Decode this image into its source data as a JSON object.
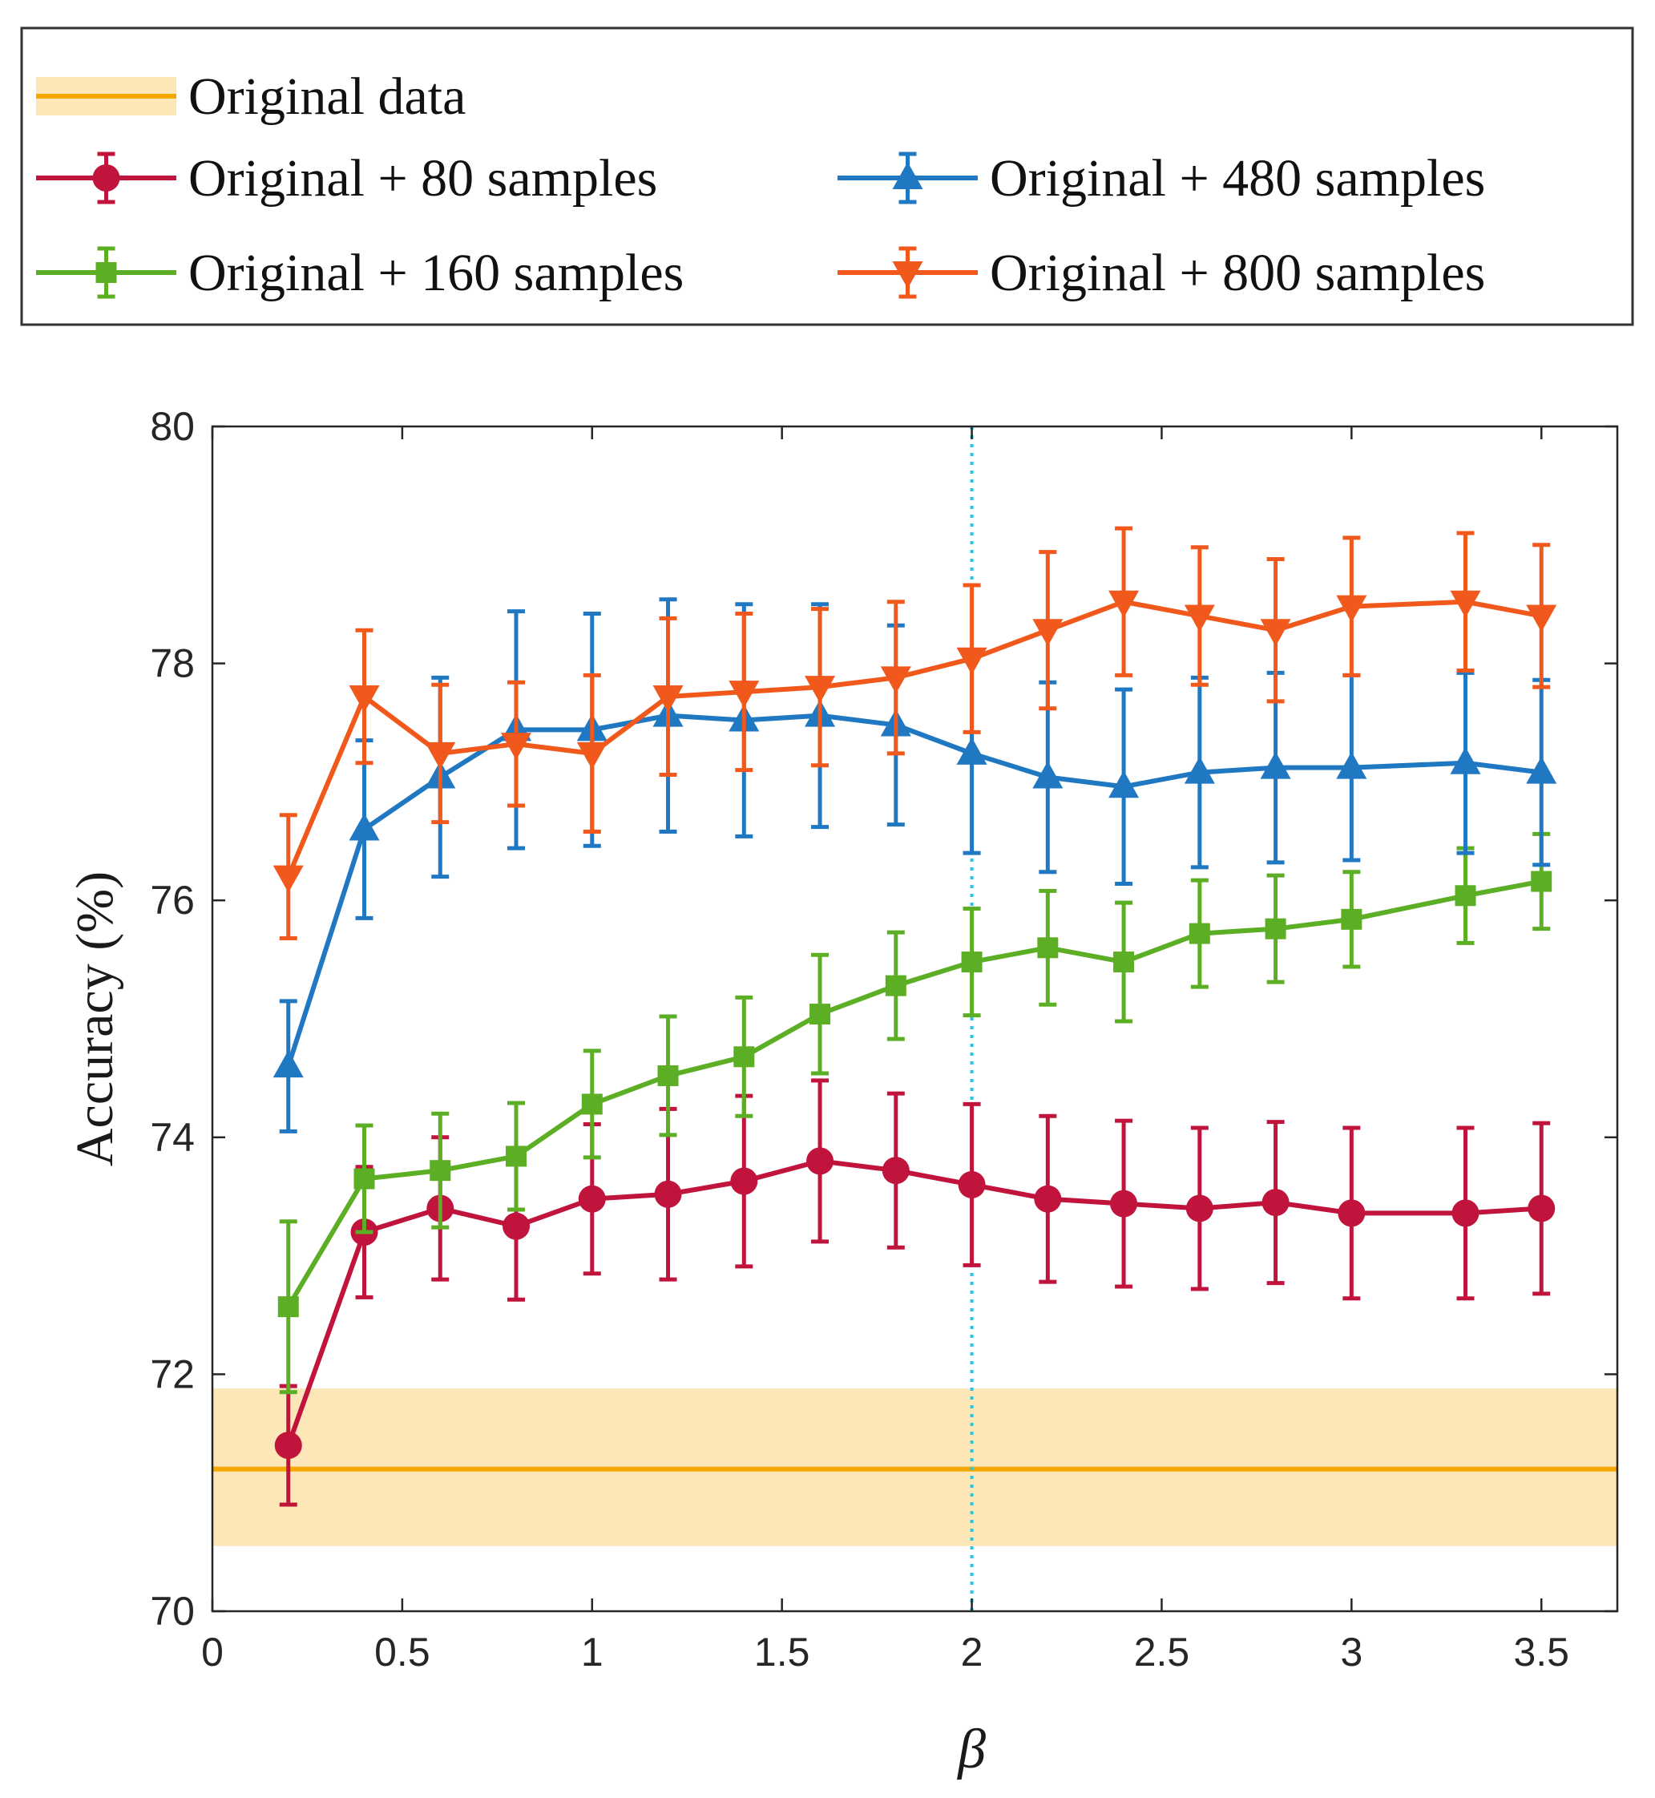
{
  "chart_data": {
    "type": "line",
    "title": "",
    "xlabel": "β",
    "ylabel": "Accuracy (%)",
    "xlim": [
      0,
      3.7
    ],
    "ylim": [
      70,
      80
    ],
    "xticks": [
      0,
      0.5,
      1,
      1.5,
      2,
      2.5,
      3,
      3.5
    ],
    "xtick_labels": [
      "0",
      "0.5",
      "1",
      "1.5",
      "2",
      "2.5",
      "3",
      "3.5"
    ],
    "yticks": [
      70,
      72,
      74,
      76,
      78,
      80
    ],
    "ytick_labels": [
      "70",
      "72",
      "74",
      "76",
      "78",
      "80"
    ],
    "x": [
      0.2,
      0.4,
      0.6,
      0.8,
      1.0,
      1.2,
      1.4,
      1.6,
      1.8,
      2.0,
      2.2,
      2.4,
      2.6,
      2.8,
      3.0,
      3.3,
      3.5
    ],
    "reference": {
      "name": "Original data",
      "mean": 71.2,
      "band": [
        70.55,
        71.88
      ],
      "color": "#f5a800",
      "band_color": "#fde6b8"
    },
    "vline": {
      "x": 2.0,
      "color": "#1fc8e6",
      "style": "dotted"
    },
    "series": [
      {
        "name": "Original + 80 samples",
        "color": "#c0143c",
        "marker": "circle",
        "values": [
          71.4,
          73.2,
          73.4,
          73.25,
          73.48,
          73.52,
          73.63,
          73.8,
          73.72,
          73.6,
          73.48,
          73.44,
          73.4,
          73.45,
          73.36,
          73.36,
          73.4
        ],
        "errors": [
          0.5,
          0.55,
          0.6,
          0.62,
          0.63,
          0.72,
          0.72,
          0.68,
          0.65,
          0.68,
          0.7,
          0.7,
          0.68,
          0.68,
          0.72,
          0.72,
          0.72
        ]
      },
      {
        "name": "Original + 160 samples",
        "color": "#5cae24",
        "marker": "square",
        "values": [
          72.57,
          73.65,
          73.72,
          73.84,
          74.28,
          74.52,
          74.68,
          75.04,
          75.28,
          75.48,
          75.6,
          75.48,
          75.72,
          75.76,
          75.84,
          76.04,
          76.16
        ],
        "errors": [
          0.72,
          0.45,
          0.48,
          0.45,
          0.45,
          0.5,
          0.5,
          0.5,
          0.45,
          0.45,
          0.48,
          0.5,
          0.45,
          0.45,
          0.4,
          0.4,
          0.4
        ]
      },
      {
        "name": "Original + 480 samples",
        "color": "#1f78c1",
        "marker": "triangle-up",
        "values": [
          74.6,
          76.6,
          77.04,
          77.44,
          77.44,
          77.56,
          77.52,
          77.56,
          77.48,
          77.24,
          77.04,
          76.96,
          77.08,
          77.12,
          77.12,
          77.16,
          77.08
        ],
        "errors": [
          0.55,
          0.75,
          0.84,
          1.0,
          0.98,
          0.98,
          0.98,
          0.94,
          0.84,
          0.84,
          0.8,
          0.82,
          0.8,
          0.8,
          0.78,
          0.76,
          0.78
        ]
      },
      {
        "name": "Original + 800 samples",
        "color": "#f0581c",
        "marker": "triangle-down",
        "values": [
          76.2,
          77.72,
          77.24,
          77.32,
          77.24,
          77.72,
          77.76,
          77.8,
          77.88,
          78.04,
          78.28,
          78.52,
          78.4,
          78.28,
          78.48,
          78.52,
          78.4
        ],
        "errors": [
          0.52,
          0.56,
          0.58,
          0.52,
          0.66,
          0.66,
          0.66,
          0.66,
          0.64,
          0.62,
          0.66,
          0.62,
          0.58,
          0.6,
          0.58,
          0.58,
          0.6
        ]
      }
    ],
    "legend_location": "top"
  }
}
